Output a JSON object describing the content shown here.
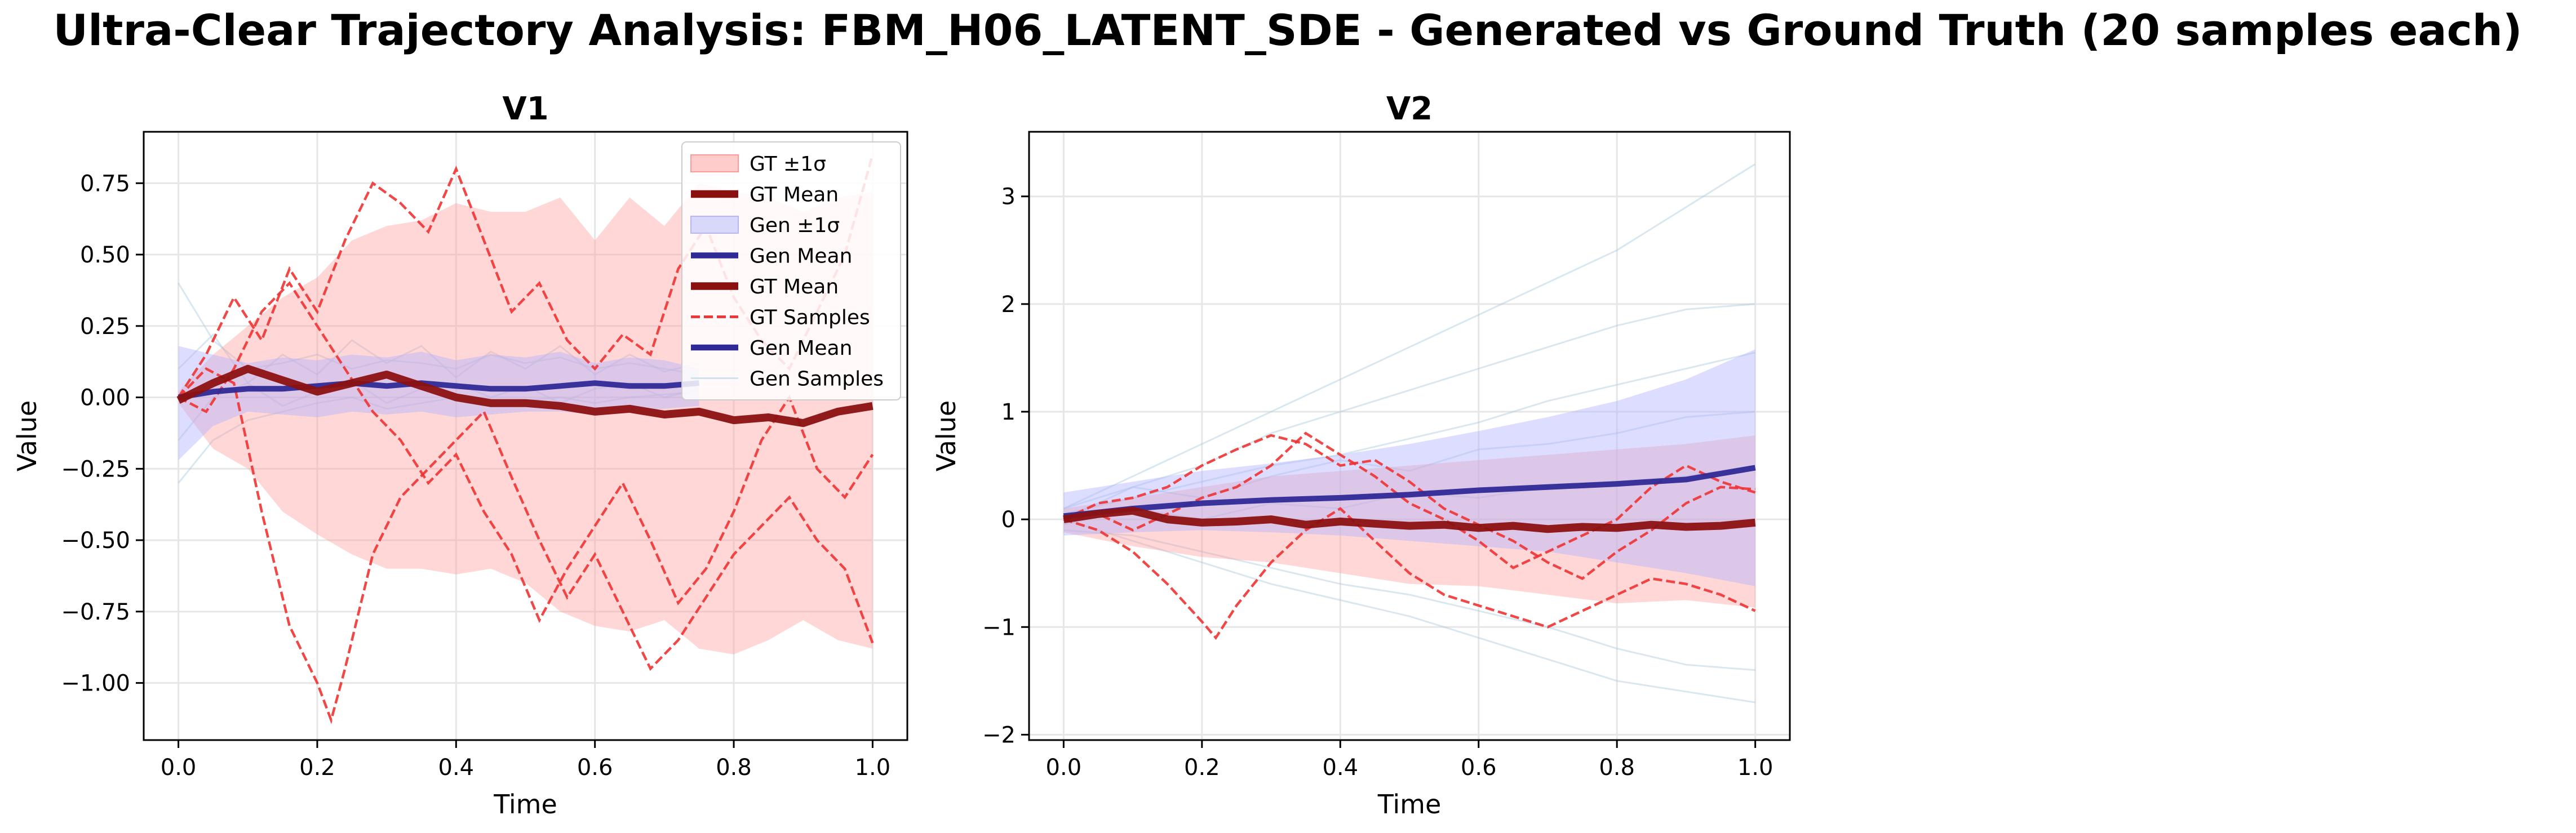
{
  "figure": {
    "suptitle": "Ultra-Clear Trajectory Analysis: FBM_H06_LATENT_SDE - Generated vs Ground Truth (20 samples each)"
  },
  "colors": {
    "gt_band": "#ff9a9a",
    "gt_mean": "#8b1111",
    "gen_band": "#b4b4ff",
    "gen_mean": "#2e2a96",
    "gt_sample": "#ee3333",
    "gen_sample": "#a9c9dd"
  },
  "legend": {
    "placement": "upper-right",
    "entries": [
      {
        "label": "GT ±1σ",
        "kind": "patch",
        "color": "#ffcccc",
        "edge": "#ff9a9a"
      },
      {
        "label": "GT Mean",
        "kind": "line",
        "color": "#8b1111",
        "width": 4.5
      },
      {
        "label": "Gen ±1σ",
        "kind": "patch",
        "color": "#d8d8fb",
        "edge": "#b4b4ff"
      },
      {
        "label": "Gen Mean",
        "kind": "line",
        "color": "#2e2a96",
        "width": 3.5
      },
      {
        "label": "GT Mean",
        "kind": "line",
        "color": "#8b1111",
        "width": 4.5
      },
      {
        "label": "GT Samples",
        "kind": "dashed",
        "color": "#ee3333",
        "width": 1.6
      },
      {
        "label": "Gen Mean",
        "kind": "line",
        "color": "#2e2a96",
        "width": 3.5
      },
      {
        "label": "Gen Samples",
        "kind": "line",
        "color": "#cfe2ee",
        "width": 1
      }
    ]
  },
  "chart_data": [
    {
      "type": "line",
      "title": "V1",
      "xlabel": "Time",
      "ylabel": "Value",
      "xlim": [
        -0.05,
        1.05
      ],
      "ylim": [
        -1.2,
        0.93
      ],
      "xticks": [
        0.0,
        0.2,
        0.4,
        0.6,
        0.8,
        1.0
      ],
      "xtick_labels": [
        "0.0",
        "0.2",
        "0.4",
        "0.6",
        "0.8",
        "1.0"
      ],
      "yticks": [
        -1.0,
        -0.75,
        -0.5,
        -0.25,
        0.0,
        0.25,
        0.5,
        0.75
      ],
      "ytick_labels": [
        "−1.00",
        "−0.75",
        "−0.50",
        "−0.25",
        "0.00",
        "0.25",
        "0.50",
        "0.75"
      ],
      "grid": true,
      "gt_band": {
        "x": [
          0,
          0.05,
          0.1,
          0.15,
          0.2,
          0.25,
          0.3,
          0.35,
          0.4,
          0.45,
          0.5,
          0.55,
          0.6,
          0.65,
          0.7,
          0.75,
          0.8,
          0.85,
          0.9,
          0.95,
          1.0
        ],
        "upper": [
          0.02,
          0.15,
          0.25,
          0.35,
          0.42,
          0.55,
          0.6,
          0.62,
          0.68,
          0.65,
          0.65,
          0.7,
          0.55,
          0.7,
          0.6,
          0.75,
          0.72,
          0.7,
          0.65,
          0.7,
          0.72
        ],
        "lower": [
          -0.02,
          -0.18,
          -0.25,
          -0.4,
          -0.48,
          -0.55,
          -0.6,
          -0.6,
          -0.62,
          -0.6,
          -0.65,
          -0.75,
          -0.8,
          -0.82,
          -0.78,
          -0.88,
          -0.9,
          -0.85,
          -0.78,
          -0.85,
          -0.88
        ]
      },
      "gt_mean": {
        "x": [
          0,
          0.05,
          0.1,
          0.15,
          0.2,
          0.25,
          0.3,
          0.35,
          0.4,
          0.45,
          0.5,
          0.55,
          0.6,
          0.65,
          0.7,
          0.75,
          0.8,
          0.85,
          0.9,
          0.95,
          1.0
        ],
        "y": [
          -0.01,
          0.05,
          0.1,
          0.06,
          0.02,
          0.05,
          0.08,
          0.04,
          0.0,
          -0.02,
          -0.02,
          -0.03,
          -0.05,
          -0.04,
          -0.06,
          -0.05,
          -0.08,
          -0.07,
          -0.09,
          -0.05,
          -0.03
        ]
      },
      "gen_band": {
        "x": [
          0,
          0.05,
          0.1,
          0.15,
          0.2,
          0.25,
          0.3,
          0.35,
          0.4,
          0.45,
          0.5,
          0.55,
          0.6,
          0.65,
          0.7,
          0.75
        ],
        "upper": [
          0.18,
          0.15,
          0.12,
          0.14,
          0.13,
          0.15,
          0.14,
          0.16,
          0.13,
          0.15,
          0.14,
          0.16,
          0.12,
          0.14,
          0.13,
          0.1
        ],
        "lower": [
          -0.22,
          -0.1,
          -0.05,
          -0.06,
          -0.07,
          -0.05,
          -0.06,
          -0.05,
          -0.07,
          -0.06,
          -0.05,
          -0.05,
          -0.06,
          -0.05,
          -0.04,
          -0.03
        ]
      },
      "gen_mean": {
        "x": [
          0,
          0.05,
          0.1,
          0.15,
          0.2,
          0.25,
          0.3,
          0.35,
          0.4,
          0.45,
          0.5,
          0.55,
          0.6,
          0.65,
          0.7,
          0.75
        ],
        "y": [
          0.0,
          0.02,
          0.03,
          0.03,
          0.04,
          0.05,
          0.04,
          0.05,
          0.04,
          0.03,
          0.03,
          0.04,
          0.05,
          0.04,
          0.04,
          0.05
        ]
      },
      "gt_samples": [
        {
          "x": [
            0,
            0.04,
            0.08,
            0.12,
            0.16,
            0.2,
            0.22,
            0.24,
            0.28,
            0.32,
            0.36,
            0.4,
            0.44,
            0.48,
            0.52,
            0.56,
            0.6,
            0.64,
            0.68,
            0.72,
            0.76,
            0.8,
            0.84,
            0.88,
            0.92,
            0.96,
            1.0
          ],
          "y": [
            0.0,
            0.1,
            0.05,
            -0.4,
            -0.8,
            -1.0,
            -1.13,
            -0.95,
            -0.55,
            -0.35,
            -0.25,
            -0.15,
            -0.05,
            -0.28,
            -0.5,
            -0.7,
            -0.55,
            -0.75,
            -0.95,
            -0.85,
            -0.7,
            -0.55,
            -0.45,
            -0.35,
            -0.5,
            -0.6,
            -0.86
          ]
        },
        {
          "x": [
            0,
            0.04,
            0.08,
            0.12,
            0.16,
            0.2,
            0.24,
            0.28,
            0.32,
            0.36,
            0.4,
            0.44,
            0.48,
            0.52,
            0.56,
            0.6,
            0.64,
            0.68,
            0.72,
            0.76,
            0.8,
            0.84,
            0.88,
            0.92,
            0.96,
            1.0
          ],
          "y": [
            0.0,
            0.15,
            0.35,
            0.2,
            0.45,
            0.3,
            0.55,
            0.75,
            0.68,
            0.58,
            0.8,
            0.55,
            0.3,
            0.4,
            0.2,
            0.1,
            0.22,
            0.15,
            0.45,
            0.6,
            0.35,
            0.2,
            0.1,
            0.3,
            0.5,
            0.85
          ]
        },
        {
          "x": [
            0,
            0.04,
            0.08,
            0.12,
            0.16,
            0.2,
            0.24,
            0.28,
            0.32,
            0.36,
            0.4,
            0.44,
            0.48,
            0.52,
            0.56,
            0.6,
            0.64,
            0.68,
            0.72,
            0.76,
            0.8,
            0.84,
            0.88,
            0.92,
            0.96,
            1.0
          ],
          "y": [
            0.0,
            -0.05,
            0.1,
            0.3,
            0.4,
            0.25,
            0.1,
            -0.05,
            -0.15,
            -0.3,
            -0.2,
            -0.4,
            -0.55,
            -0.78,
            -0.6,
            -0.45,
            -0.3,
            -0.5,
            -0.72,
            -0.6,
            -0.4,
            -0.15,
            0.0,
            -0.25,
            -0.35,
            -0.2
          ]
        }
      ],
      "gen_samples": [
        {
          "x": [
            0,
            0.05,
            0.1,
            0.15,
            0.2,
            0.25,
            0.3,
            0.35,
            0.4,
            0.45,
            0.5,
            0.55,
            0.6,
            0.65,
            0.7,
            0.75
          ],
          "y": [
            0.4,
            0.2,
            0.1,
            0.12,
            0.15,
            0.1,
            0.13,
            0.12,
            0.1,
            0.15,
            0.12,
            0.14,
            0.1,
            0.12,
            0.1,
            0.08
          ]
        },
        {
          "x": [
            0,
            0.05,
            0.1,
            0.15,
            0.2,
            0.25,
            0.3,
            0.35,
            0.4,
            0.45,
            0.5,
            0.55,
            0.6,
            0.65,
            0.7,
            0.75
          ],
          "y": [
            -0.3,
            -0.15,
            -0.08,
            -0.05,
            -0.02,
            0.0,
            -0.04,
            -0.02,
            0.0,
            -0.03,
            -0.01,
            0.0,
            -0.02,
            0.0,
            0.01,
            0.02
          ]
        },
        {
          "x": [
            0,
            0.05,
            0.1,
            0.15,
            0.2,
            0.25,
            0.3,
            0.35,
            0.4,
            0.45,
            0.5,
            0.55,
            0.6,
            0.65,
            0.7,
            0.75
          ],
          "y": [
            0.1,
            0.22,
            0.05,
            0.15,
            0.08,
            0.2,
            0.12,
            0.18,
            0.07,
            0.16,
            0.1,
            0.18,
            0.08,
            0.15,
            0.09,
            0.12
          ]
        },
        {
          "x": [
            0,
            0.05,
            0.1,
            0.15,
            0.2,
            0.25,
            0.3,
            0.35,
            0.4,
            0.45,
            0.5,
            0.55,
            0.6,
            0.65,
            0.7,
            0.75
          ],
          "y": [
            -0.15,
            0.0,
            0.05,
            -0.03,
            0.02,
            0.06,
            -0.02,
            0.03,
            0.05,
            0.0,
            0.04,
            -0.02,
            0.03,
            0.05,
            0.0,
            0.03
          ]
        }
      ]
    },
    {
      "type": "line",
      "title": "V2",
      "xlabel": "Time",
      "ylabel": "Value",
      "xlim": [
        -0.05,
        1.05
      ],
      "ylim": [
        -2.05,
        3.6
      ],
      "xticks": [
        0.0,
        0.2,
        0.4,
        0.6,
        0.8,
        1.0
      ],
      "xtick_labels": [
        "0.0",
        "0.2",
        "0.4",
        "0.6",
        "0.8",
        "1.0"
      ],
      "yticks": [
        -2,
        -1,
        0,
        1,
        2,
        3
      ],
      "ytick_labels": [
        "−2",
        "−1",
        "0",
        "1",
        "2",
        "3"
      ],
      "grid": true,
      "gt_band": {
        "x": [
          0,
          0.1,
          0.2,
          0.3,
          0.4,
          0.5,
          0.6,
          0.7,
          0.8,
          0.9,
          1.0
        ],
        "upper": [
          0.1,
          0.2,
          0.3,
          0.4,
          0.45,
          0.5,
          0.55,
          0.6,
          0.65,
          0.7,
          0.78
        ],
        "lower": [
          -0.12,
          -0.25,
          -0.35,
          -0.4,
          -0.5,
          -0.6,
          -0.62,
          -0.7,
          -0.78,
          -0.75,
          -0.82
        ]
      },
      "gt_mean": {
        "x": [
          0,
          0.05,
          0.1,
          0.15,
          0.2,
          0.25,
          0.3,
          0.35,
          0.4,
          0.45,
          0.5,
          0.55,
          0.6,
          0.65,
          0.7,
          0.75,
          0.8,
          0.85,
          0.9,
          0.95,
          1.0
        ],
        "y": [
          0.0,
          0.05,
          0.08,
          0.0,
          -0.03,
          -0.02,
          0.0,
          -0.05,
          -0.02,
          -0.04,
          -0.06,
          -0.05,
          -0.08,
          -0.06,
          -0.09,
          -0.07,
          -0.08,
          -0.05,
          -0.07,
          -0.06,
          -0.03
        ]
      },
      "gen_band": {
        "x": [
          0,
          0.1,
          0.2,
          0.3,
          0.4,
          0.5,
          0.6,
          0.7,
          0.8,
          0.9,
          1.0
        ],
        "upper": [
          0.25,
          0.35,
          0.45,
          0.52,
          0.6,
          0.7,
          0.82,
          0.95,
          1.1,
          1.3,
          1.58
        ],
        "lower": [
          -0.15,
          -0.12,
          -0.1,
          -0.12,
          -0.15,
          -0.2,
          -0.25,
          -0.3,
          -0.4,
          -0.5,
          -0.62
        ]
      },
      "gen_mean": {
        "x": [
          0,
          0.1,
          0.2,
          0.3,
          0.4,
          0.5,
          0.6,
          0.7,
          0.8,
          0.9,
          1.0
        ],
        "y": [
          0.03,
          0.1,
          0.15,
          0.18,
          0.2,
          0.23,
          0.27,
          0.3,
          0.33,
          0.37,
          0.48
        ]
      },
      "gt_samples": [
        {
          "x": [
            0,
            0.05,
            0.1,
            0.15,
            0.2,
            0.22,
            0.25,
            0.3,
            0.35,
            0.4,
            0.45,
            0.5,
            0.55,
            0.6,
            0.65,
            0.7,
            0.75,
            0.8,
            0.85,
            0.9,
            0.95,
            1.0
          ],
          "y": [
            0.0,
            -0.1,
            -0.3,
            -0.6,
            -0.95,
            -1.1,
            -0.8,
            -0.4,
            -0.1,
            0.1,
            -0.2,
            -0.5,
            -0.7,
            -0.8,
            -0.9,
            -1.0,
            -0.85,
            -0.7,
            -0.55,
            -0.6,
            -0.7,
            -0.85
          ]
        },
        {
          "x": [
            0,
            0.05,
            0.1,
            0.15,
            0.2,
            0.25,
            0.3,
            0.35,
            0.4,
            0.45,
            0.5,
            0.55,
            0.6,
            0.65,
            0.7,
            0.75,
            0.8,
            0.85,
            0.9,
            0.95,
            1.0
          ],
          "y": [
            0.0,
            0.15,
            0.2,
            0.3,
            0.5,
            0.65,
            0.78,
            0.7,
            0.5,
            0.55,
            0.35,
            0.1,
            -0.05,
            -0.2,
            -0.4,
            -0.55,
            -0.3,
            -0.1,
            0.15,
            0.3,
            0.28
          ]
        },
        {
          "x": [
            0,
            0.05,
            0.1,
            0.15,
            0.2,
            0.25,
            0.3,
            0.35,
            0.4,
            0.45,
            0.5,
            0.55,
            0.6,
            0.65,
            0.7,
            0.75,
            0.8,
            0.85,
            0.9,
            0.95,
            1.0
          ],
          "y": [
            0.0,
            0.05,
            -0.1,
            0.05,
            0.2,
            0.3,
            0.5,
            0.8,
            0.6,
            0.4,
            0.15,
            0.0,
            -0.2,
            -0.45,
            -0.3,
            -0.15,
            0.0,
            0.3,
            0.5,
            0.35,
            0.25
          ]
        }
      ],
      "gen_samples": [
        {
          "x": [
            0,
            0.1,
            0.2,
            0.3,
            0.4,
            0.5,
            0.6,
            0.7,
            0.8,
            0.9,
            1.0
          ],
          "y": [
            0.1,
            0.4,
            0.7,
            1.0,
            1.3,
            1.6,
            1.9,
            2.2,
            2.5,
            2.9,
            3.3
          ]
        },
        {
          "x": [
            0,
            0.1,
            0.2,
            0.3,
            0.4,
            0.5,
            0.6,
            0.7,
            0.8,
            0.9,
            1.0
          ],
          "y": [
            0.0,
            0.3,
            0.5,
            0.8,
            1.0,
            1.2,
            1.4,
            1.6,
            1.8,
            1.95,
            2.0
          ]
        },
        {
          "x": [
            0,
            0.1,
            0.2,
            0.3,
            0.4,
            0.5,
            0.6,
            0.7,
            0.8,
            0.9,
            1.0
          ],
          "y": [
            0.05,
            0.2,
            0.35,
            0.5,
            0.6,
            0.75,
            0.9,
            1.1,
            1.25,
            1.4,
            1.55
          ]
        },
        {
          "x": [
            0,
            0.1,
            0.2,
            0.3,
            0.4,
            0.5,
            0.6,
            0.7,
            0.8,
            0.9,
            1.0
          ],
          "y": [
            0.0,
            -0.2,
            -0.4,
            -0.6,
            -0.75,
            -0.9,
            -1.1,
            -1.3,
            -1.5,
            -1.6,
            -1.7
          ]
        },
        {
          "x": [
            0,
            0.1,
            0.2,
            0.3,
            0.4,
            0.5,
            0.6,
            0.7,
            0.8,
            0.9,
            1.0
          ],
          "y": [
            -0.1,
            -0.15,
            -0.3,
            -0.45,
            -0.6,
            -0.7,
            -0.85,
            -1.0,
            -1.2,
            -1.35,
            -1.4
          ]
        },
        {
          "x": [
            0,
            0.1,
            0.2,
            0.3,
            0.4,
            0.5,
            0.6,
            0.7,
            0.8,
            0.9,
            1.0
          ],
          "y": [
            0.1,
            0.3,
            0.2,
            0.4,
            0.55,
            0.45,
            0.65,
            0.7,
            0.8,
            0.95,
            1.0
          ]
        },
        {
          "x": [
            0,
            0.1,
            0.2,
            0.3,
            0.4,
            0.5,
            0.6,
            0.7,
            0.8,
            0.9,
            1.0
          ],
          "y": [
            -0.05,
            0.1,
            0.0,
            0.15,
            0.1,
            0.25,
            0.2,
            0.3,
            0.35,
            0.4,
            0.5
          ]
        }
      ]
    }
  ]
}
